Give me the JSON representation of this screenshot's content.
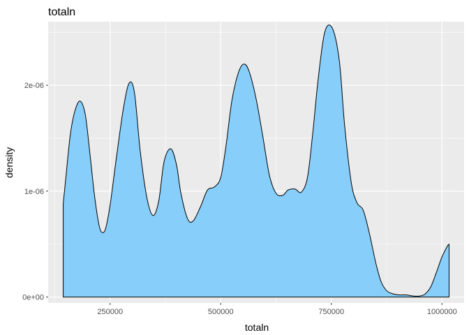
{
  "chart_data": {
    "type": "area",
    "title": "totaln",
    "xlabel": "totaln",
    "ylabel": "density",
    "xlim": [
      110000,
      1050000
    ],
    "ylim": [
      -5.5e-08,
      2.6e-06
    ],
    "grid": true,
    "x_ticks": [
      {
        "value": 250000,
        "label": "250000"
      },
      {
        "value": 500000,
        "label": "500000"
      },
      {
        "value": 750000,
        "label": "750000"
      },
      {
        "value": 1000000,
        "label": "1000000"
      }
    ],
    "y_ticks": [
      {
        "value": 0,
        "label": "0e+00"
      },
      {
        "value": 1e-06,
        "label": "1e-06"
      },
      {
        "value": 2e-06,
        "label": "2e-06"
      }
    ],
    "colors": {
      "fill": "#87CEFA",
      "outline": "#000000",
      "panel": "#EBEBEB",
      "grid": "#FFFFFF"
    },
    "x": [
      144000,
      150000,
      160000,
      170000,
      182000,
      194000,
      205000,
      215000,
      225000,
      232000,
      240000,
      250000,
      265000,
      280000,
      293000,
      305000,
      318000,
      333000,
      347000,
      360000,
      372000,
      387000,
      400000,
      410000,
      425000,
      438000,
      455000,
      470000,
      486000,
      500000,
      512000,
      525000,
      540000,
      553000,
      565000,
      580000,
      595000,
      610000,
      625000,
      640000,
      652000,
      668000,
      682000,
      696000,
      708000,
      720000,
      735000,
      752000,
      768000,
      780000,
      795000,
      808000,
      822000,
      836000,
      850000,
      862000,
      875000,
      890000,
      905000,
      920000,
      935000,
      950000,
      962000,
      975000,
      988000,
      1000000,
      1012000,
      1016000
    ],
    "y": [
      8.8e-07,
      1.13e-06,
      1.53e-06,
      1.75e-06,
      1.85e-06,
      1.72e-06,
      1.33e-06,
      9.5e-07,
      6.8e-07,
      6.1e-07,
      6.5e-07,
      8.7e-07,
      1.34e-06,
      1.78e-06,
      2.02e-06,
      1.93e-06,
      1.38e-06,
      9.4e-07,
      7.7e-07,
      9.1e-07,
      1.28e-06,
      1.4e-06,
      1.25e-06,
      9.8e-07,
      7.4e-07,
      7.2e-07,
      8.6e-07,
      1.01e-06,
      1.04e-06,
      1.13e-06,
      1.43e-06,
      1.85e-06,
      2.12e-06,
      2.2e-06,
      2.12e-06,
      1.87e-06,
      1.52e-06,
      1.15e-06,
      9.8e-07,
      9.6e-07,
      1.01e-06,
      1.02e-06,
      9.9e-07,
      1.13e-06,
      1.55e-06,
      2.05e-06,
      2.5e-06,
      2.54e-06,
      2.23e-06,
      1.62e-06,
      1.08e-06,
      8.9e-07,
      8.2e-07,
      6e-07,
      3.3e-07,
      1.5e-07,
      6e-08,
      3e-08,
      2e-08,
      2e-08,
      1e-08,
      1e-08,
      3e-08,
      1e-07,
      2.4e-07,
      3.8e-07,
      4.8e-07,
      5e-07
    ]
  }
}
